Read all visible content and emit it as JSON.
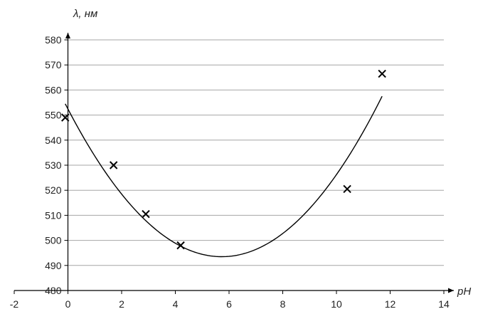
{
  "chart_data": {
    "type": "scatter",
    "title": "",
    "xlabel": "pH",
    "ylabel": "λ, нм",
    "xlim": [
      -2,
      14
    ],
    "ylim": [
      480,
      580
    ],
    "x_ticks": [
      "-2",
      "0",
      "2",
      "4",
      "6",
      "8",
      "10",
      "12",
      "14"
    ],
    "y_ticks": [
      "480",
      "490",
      "500",
      "510",
      "520",
      "530",
      "540",
      "550",
      "560",
      "570",
      "580"
    ],
    "grid": "horizontal",
    "legend": "none",
    "marker": "x",
    "series": [
      {
        "points": [
          {
            "x": -0.1,
            "y": 549
          },
          {
            "x": 1.7,
            "y": 530
          },
          {
            "x": 2.9,
            "y": 510.5
          },
          {
            "x": 4.2,
            "y": 498
          },
          {
            "x": 10.4,
            "y": 520.5
          },
          {
            "x": 11.7,
            "y": 566.5
          }
        ]
      }
    ],
    "trendline": {
      "type": "polynomial-2",
      "x_range": [
        -0.1,
        11.7
      ],
      "points": [
        {
          "x": -0.1,
          "y": 554.5
        },
        {
          "x": 5.8,
          "y": 493.5
        },
        {
          "x": 11.7,
          "y": 557.5
        }
      ]
    },
    "colors": {
      "axis": "#000000",
      "grid": "#a6a6a6",
      "marker": "#000000",
      "line": "#000000"
    }
  }
}
